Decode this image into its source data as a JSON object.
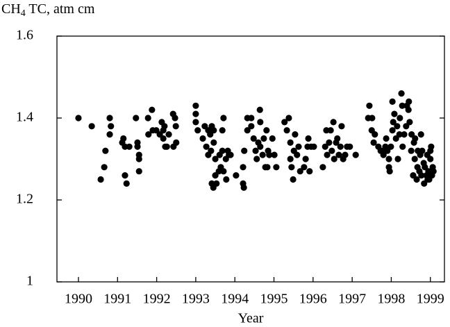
{
  "chart_data": {
    "type": "scatter",
    "y_label": {
      "main": "CH",
      "sub": "4",
      "rest": " TC, atm cm"
    },
    "x_label": "Year",
    "color": "#000000",
    "xlim": [
      1989.45,
      1999.36
    ],
    "xticks": [
      1990,
      1991,
      1992,
      1993,
      1994,
      1995,
      1996,
      1997,
      1998,
      1999
    ],
    "ylim": [
      1.0,
      1.6
    ],
    "yticks": [
      1.0,
      1.2,
      1.4,
      1.6
    ],
    "x": [
      1990.0,
      1990.34,
      1990.57,
      1990.66,
      1990.69,
      1990.8,
      1990.83,
      1990.8,
      1991.12,
      1991.15,
      1991.19,
      1991.3,
      1991.19,
      1991.23,
      1991.47,
      1991.51,
      1991.51,
      1991.55,
      1991.55,
      1991.55,
      1991.78,
      1991.88,
      1991.79,
      1991.9,
      1991.99,
      1992.08,
      1992.17,
      1992.13,
      1992.2,
      1992.22,
      1992.17,
      1992.31,
      1992.42,
      1992.47,
      1992.49,
      1992.43,
      1992.5,
      1992.26,
      1993.0,
      1993.0,
      1993.0,
      1993.05,
      1993.18,
      1993.23,
      1993.27,
      1993.32,
      1993.32,
      1993.37,
      1993.39,
      1993.41,
      1993.46,
      1993.5,
      1993.46,
      1993.41,
      1993.45,
      1993.5,
      1993.53,
      1993.59,
      1993.61,
      1993.64,
      1993.68,
      1993.68,
      1993.71,
      1993.71,
      1993.77,
      1993.82,
      1993.78,
      1993.85,
      1993.89,
      1994.03,
      1994.21,
      1994.23,
      1994.21,
      1994.24,
      1994.32,
      1994.32,
      1994.42,
      1994.42,
      1994.48,
      1994.53,
      1994.56,
      1994.6,
      1994.64,
      1994.65,
      1994.65,
      1994.71,
      1994.74,
      1994.78,
      1994.81,
      1994.85,
      1994.88,
      1994.96,
      1995.01,
      1995.06,
      1994.83,
      1995.27,
      1995.33,
      1995.38,
      1995.42,
      1995.42,
      1995.45,
      1995.49,
      1995.51,
      1995.54,
      1995.59,
      1995.63,
      1995.67,
      1995.77,
      1995.81,
      1995.86,
      1995.88,
      1995.91,
      1995.95,
      1996.02,
      1996.25,
      1996.31,
      1996.34,
      1996.36,
      1996.41,
      1996.45,
      1996.48,
      1996.52,
      1996.54,
      1996.59,
      1996.62,
      1996.66,
      1996.7,
      1996.73,
      1996.77,
      1996.82,
      1996.87,
      1996.94,
      1997.09,
      1997.41,
      1997.44,
      1997.5,
      1997.51,
      1997.55,
      1997.58,
      1997.67,
      1997.73,
      1997.76,
      1997.8,
      1997.85,
      1997.87,
      1997.9,
      1997.94,
      1997.94,
      1997.96,
      1997.99,
      1998.03,
      1998.03,
      1998.05,
      1998.08,
      1998.12,
      1998.15,
      1998.17,
      1998.21,
      1998.22,
      1998.26,
      1998.28,
      1998.29,
      1998.33,
      1998.38,
      1998.4,
      1998.44,
      1998.45,
      1998.47,
      1998.51,
      1998.52,
      1998.56,
      1998.58,
      1998.6,
      1998.61,
      1998.65,
      1998.67,
      1998.68,
      1998.72,
      1998.74,
      1998.76,
      1998.77,
      1998.79,
      1998.83,
      1998.84,
      1998.86,
      1998.9,
      1998.92,
      1998.93,
      1998.95,
      1998.97,
      1999.0,
      1999.02,
      1999.04,
      1999.06,
      1999.08,
      1999.0
    ],
    "values": [
      1.4,
      1.38,
      1.25,
      1.28,
      1.32,
      1.4,
      1.38,
      1.36,
      1.34,
      1.35,
      1.33,
      1.33,
      1.26,
      1.24,
      1.4,
      1.34,
      1.33,
      1.31,
      1.3,
      1.27,
      1.4,
      1.42,
      1.36,
      1.37,
      1.37,
      1.36,
      1.37,
      1.39,
      1.38,
      1.33,
      1.35,
      1.36,
      1.41,
      1.4,
      1.38,
      1.33,
      1.34,
      1.33,
      1.43,
      1.41,
      1.39,
      1.37,
      1.35,
      1.38,
      1.33,
      1.31,
      1.37,
      1.36,
      1.32,
      1.38,
      1.34,
      1.3,
      1.37,
      1.24,
      1.23,
      1.26,
      1.24,
      1.27,
      1.31,
      1.28,
      1.32,
      1.37,
      1.4,
      1.27,
      1.3,
      1.32,
      1.25,
      1.31,
      1.31,
      1.26,
      1.24,
      1.23,
      1.28,
      1.32,
      1.37,
      1.4,
      1.38,
      1.4,
      1.35,
      1.32,
      1.3,
      1.34,
      1.42,
      1.39,
      1.33,
      1.31,
      1.35,
      1.28,
      1.37,
      1.32,
      1.31,
      1.35,
      1.31,
      1.28,
      1.28,
      1.39,
      1.37,
      1.4,
      1.34,
      1.3,
      1.28,
      1.25,
      1.32,
      1.36,
      1.31,
      1.33,
      1.27,
      1.28,
      1.3,
      1.33,
      1.35,
      1.27,
      1.33,
      1.33,
      1.28,
      1.33,
      1.37,
      1.31,
      1.34,
      1.37,
      1.32,
      1.39,
      1.3,
      1.34,
      1.35,
      1.31,
      1.33,
      1.38,
      1.3,
      1.31,
      1.33,
      1.33,
      1.31,
      1.4,
      1.43,
      1.37,
      1.4,
      1.34,
      1.36,
      1.33,
      1.32,
      1.32,
      1.31,
      1.33,
      1.35,
      1.32,
      1.3,
      1.28,
      1.27,
      1.33,
      1.37,
      1.44,
      1.39,
      1.41,
      1.35,
      1.38,
      1.3,
      1.36,
      1.4,
      1.46,
      1.43,
      1.33,
      1.36,
      1.38,
      1.43,
      1.42,
      1.44,
      1.39,
      1.32,
      1.36,
      1.26,
      1.34,
      1.3,
      1.35,
      1.25,
      1.28,
      1.32,
      1.27,
      1.31,
      1.36,
      1.26,
      1.32,
      1.29,
      1.24,
      1.28,
      1.26,
      1.31,
      1.25,
      1.27,
      1.25,
      1.3,
      1.33,
      1.26,
      1.28,
      1.27,
      1.32
    ]
  }
}
